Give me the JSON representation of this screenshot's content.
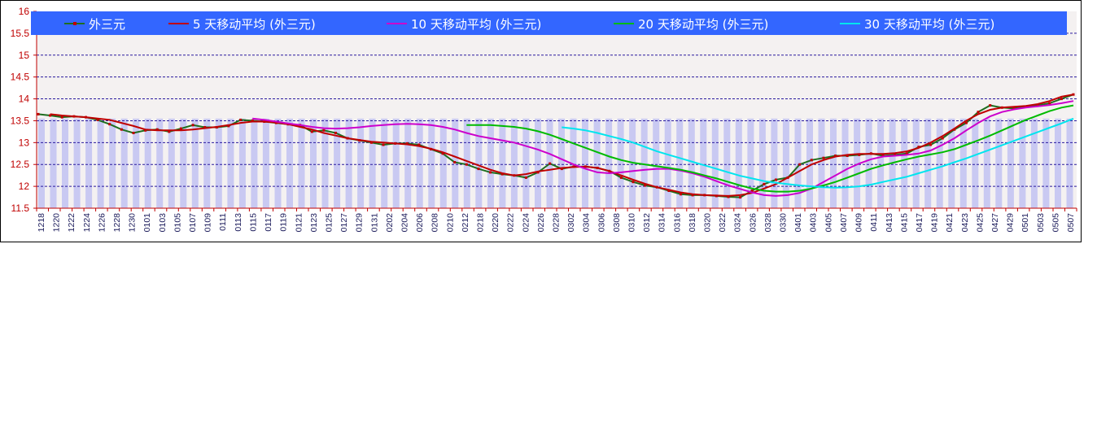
{
  "chart_data": {
    "type": "line",
    "title": "",
    "xlabel": "",
    "ylabel": "",
    "ylim": [
      11.5,
      16
    ],
    "yticks": [
      "16",
      "15.5",
      "15",
      "14.5",
      "14",
      "13.5",
      "13",
      "12.5",
      "12",
      "11.5"
    ],
    "legend_position": "top",
    "grid": true,
    "x_labels": [
      "1218",
      "1220",
      "1222",
      "1224",
      "1226",
      "1228",
      "1230",
      "0101",
      "0103",
      "0105",
      "0107",
      "0109",
      "0111",
      "0113",
      "0115",
      "0117",
      "0119",
      "0121",
      "0123",
      "0125",
      "0127",
      "0129",
      "0131",
      "0202",
      "0204",
      "0206",
      "0208",
      "0210",
      "0212",
      "0218",
      "0220",
      "0222",
      "0224",
      "0226",
      "0228",
      "0302",
      "0304",
      "0306",
      "0308",
      "0310",
      "0312",
      "0314",
      "0316",
      "0318",
      "0320",
      "0322",
      "0324",
      "0326",
      "0328",
      "0330",
      "0401",
      "0403",
      "0405",
      "0407",
      "0409",
      "0411",
      "0413",
      "0415",
      "0417",
      "0419",
      "0421",
      "0423",
      "0425",
      "0427",
      "0429",
      "0501",
      "0503",
      "0505",
      "0507"
    ],
    "series": [
      {
        "name": "外三元",
        "color": "#1f6e1f",
        "marker_color": "#c00000",
        "values": [
          13.65,
          13.62,
          13.58,
          13.6,
          13.58,
          13.52,
          13.42,
          13.3,
          13.22,
          13.28,
          13.3,
          13.25,
          13.32,
          13.4,
          13.35,
          13.35,
          13.38,
          13.52,
          13.5,
          13.48,
          13.45,
          13.42,
          13.4,
          13.25,
          13.28,
          13.22,
          13.1,
          13.05,
          13.0,
          12.95,
          12.98,
          12.98,
          12.95,
          12.85,
          12.75,
          12.55,
          12.5,
          12.4,
          12.32,
          12.28,
          12.25,
          12.2,
          12.32,
          12.52,
          12.4,
          12.45,
          12.45,
          12.42,
          12.35,
          12.2,
          12.1,
          12.02,
          11.98,
          11.9,
          11.82,
          11.8,
          11.8,
          11.78,
          11.76,
          11.75,
          11.9,
          12.05,
          12.15,
          12.2,
          12.5,
          12.6,
          12.65,
          12.7,
          12.7,
          12.72,
          12.75,
          12.7,
          12.72,
          12.75,
          12.9,
          12.95,
          13.1,
          13.3,
          13.45,
          13.7,
          13.85,
          13.8,
          13.78,
          13.82,
          13.85,
          13.9,
          14.0,
          14.1
        ]
      },
      {
        "name": "5 天移动平均 (外三元)",
        "color": "#c00000",
        "values": [
          13.65,
          13.62,
          13.6,
          13.58,
          13.55,
          13.52,
          13.45,
          13.38,
          13.3,
          13.28,
          13.28,
          13.28,
          13.3,
          13.33,
          13.36,
          13.4,
          13.45,
          13.48,
          13.48,
          13.46,
          13.42,
          13.36,
          13.3,
          13.22,
          13.16,
          13.1,
          13.06,
          13.02,
          13.0,
          12.98,
          12.96,
          12.92,
          12.86,
          12.78,
          12.68,
          12.58,
          12.48,
          12.38,
          12.3,
          12.25,
          12.28,
          12.34,
          12.38,
          12.42,
          12.44,
          12.45,
          12.42,
          12.35,
          12.25,
          12.15,
          12.06,
          11.98,
          11.92,
          11.86,
          11.82,
          11.8,
          11.79,
          11.78,
          11.8,
          11.85,
          11.95,
          12.05,
          12.2,
          12.35,
          12.5,
          12.6,
          12.68,
          12.72,
          12.74,
          12.74,
          12.74,
          12.76,
          12.8,
          12.88,
          13.0,
          13.15,
          13.32,
          13.5,
          13.65,
          13.75,
          13.8,
          13.82,
          13.84,
          13.88,
          13.95,
          14.05,
          14.1
        ]
      },
      {
        "name": "10 天移动平均 (外三元)",
        "color": "#cc00cc",
        "values": [
          13.55,
          13.52,
          13.48,
          13.44,
          13.4,
          13.36,
          13.33,
          13.32,
          13.33,
          13.35,
          13.38,
          13.4,
          13.42,
          13.43,
          13.42,
          13.4,
          13.36,
          13.3,
          13.22,
          13.15,
          13.1,
          13.05,
          13.0,
          12.92,
          12.84,
          12.74,
          12.62,
          12.5,
          12.4,
          12.32,
          12.3,
          12.32,
          12.35,
          12.38,
          12.4,
          12.4,
          12.36,
          12.3,
          12.22,
          12.12,
          12.02,
          11.94,
          11.86,
          11.8,
          11.78,
          11.8,
          11.85,
          11.95,
          12.1,
          12.25,
          12.4,
          12.52,
          12.62,
          12.68,
          12.7,
          12.72,
          12.75,
          12.82,
          12.95,
          13.1,
          13.28,
          13.45,
          13.6,
          13.7,
          13.76,
          13.8,
          13.83,
          13.86,
          13.9,
          13.95
        ]
      },
      {
        "name": "20 天移动平均 (外三元)",
        "color": "#00bb00",
        "values": [
          13.4,
          13.4,
          13.4,
          13.38,
          13.36,
          13.32,
          13.26,
          13.18,
          13.08,
          12.98,
          12.88,
          12.78,
          12.68,
          12.6,
          12.54,
          12.5,
          12.46,
          12.42,
          12.38,
          12.32,
          12.25,
          12.18,
          12.1,
          12.02,
          11.95,
          11.9,
          11.88,
          11.88,
          11.9,
          11.95,
          12.02,
          12.1,
          12.2,
          12.3,
          12.4,
          12.48,
          12.55,
          12.62,
          12.68,
          12.73,
          12.78,
          12.85,
          12.95,
          13.05,
          13.16,
          13.28,
          13.4,
          13.52,
          13.62,
          13.72,
          13.8,
          13.85
        ]
      },
      {
        "name": "30 天移动平均 (外三元)",
        "color": "#00e5ee",
        "values": [
          13.35,
          13.32,
          13.28,
          13.22,
          13.15,
          13.08,
          13.0,
          12.9,
          12.8,
          12.72,
          12.64,
          12.56,
          12.48,
          12.4,
          12.32,
          12.24,
          12.18,
          12.12,
          12.08,
          12.05,
          12.02,
          12.0,
          11.98,
          11.97,
          11.98,
          12.0,
          12.04,
          12.1,
          12.16,
          12.22,
          12.3,
          12.38,
          12.46,
          12.55,
          12.64,
          12.74,
          12.84,
          12.94,
          13.04,
          13.14,
          13.24,
          13.34,
          13.44,
          13.55
        ]
      }
    ],
    "bar_series": {
      "color": "#c9c9f2",
      "count": 88,
      "value": 13.55
    }
  },
  "colors": {
    "legend_bg": "#3366ff",
    "grid_line": "#2a1a9e",
    "axis": "#c00000",
    "tick_text": "#c00000",
    "xlabel_text": "#1a1a5a"
  }
}
